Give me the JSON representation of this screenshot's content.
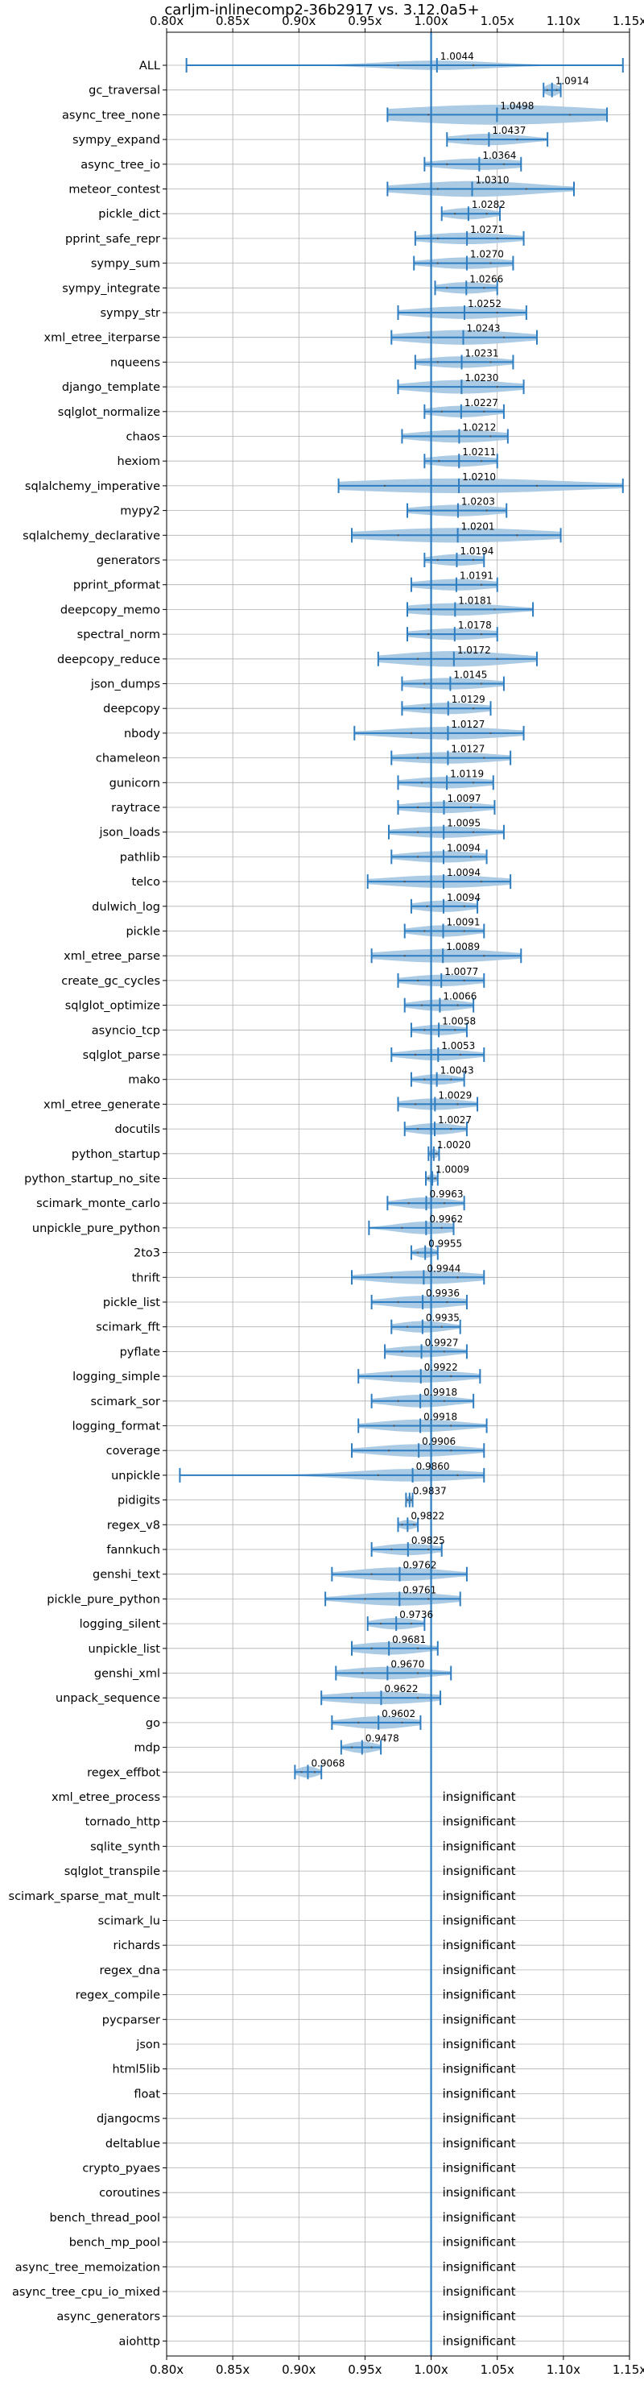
{
  "chart_data": {
    "type": "violin",
    "title": "carljm-inlinecomp2-36b2917 vs. 3.12.0a5+",
    "xlim": [
      0.8,
      1.15
    ],
    "x_ticks": [
      0.8,
      0.85,
      0.9,
      0.95,
      1.0,
      1.05,
      1.1,
      1.15
    ],
    "x_tick_labels": [
      "0.80x",
      "0.85x",
      "0.90x",
      "0.95x",
      "1.00x",
      "1.05x",
      "1.10x",
      "1.15x"
    ],
    "reference_line": 1.0,
    "grid": true,
    "colors": {
      "violin": "#a6c8e4",
      "line": "#2e7dc0"
    },
    "insignificant_label": "insignificant",
    "benchmarks": [
      {
        "name": "ALL",
        "mean": 1.0044,
        "label": "1.0044",
        "min": 0.815,
        "max": 1.145,
        "q1": 0.975,
        "q3": 1.032,
        "width": 0.45
      },
      {
        "name": "gc_traversal",
        "mean": 1.0914,
        "label": "1.0914",
        "min": 1.085,
        "max": 1.098,
        "q1": 1.088,
        "q3": 1.095,
        "width": 0.6
      },
      {
        "name": "async_tree_none",
        "mean": 1.0498,
        "label": "1.0498",
        "min": 0.967,
        "max": 1.133,
        "q1": 0.998,
        "q3": 1.105,
        "width": 0.95
      },
      {
        "name": "sympy_expand",
        "mean": 1.0437,
        "label": "1.0437",
        "min": 1.012,
        "max": 1.088,
        "q1": 1.028,
        "q3": 1.065,
        "width": 0.55
      },
      {
        "name": "async_tree_io",
        "mean": 1.0364,
        "label": "1.0364",
        "min": 0.995,
        "max": 1.068,
        "q1": 1.012,
        "q3": 1.055,
        "width": 0.55
      },
      {
        "name": "meteor_contest",
        "mean": 1.031,
        "label": "1.0310",
        "min": 0.967,
        "max": 1.108,
        "q1": 1.005,
        "q3": 1.072,
        "width": 0.75
      },
      {
        "name": "pickle_dict",
        "mean": 1.0282,
        "label": "1.0282",
        "min": 1.008,
        "max": 1.052,
        "q1": 1.018,
        "q3": 1.042,
        "width": 0.55
      },
      {
        "name": "pprint_safe_repr",
        "mean": 1.0271,
        "label": "1.0271",
        "min": 0.988,
        "max": 1.07,
        "q1": 1.005,
        "q3": 1.05,
        "width": 0.55
      },
      {
        "name": "sympy_sum",
        "mean": 1.027,
        "label": "1.0270",
        "min": 0.987,
        "max": 1.062,
        "q1": 1.005,
        "q3": 1.045,
        "width": 0.55
      },
      {
        "name": "sympy_integrate",
        "mean": 1.0266,
        "label": "1.0266",
        "min": 1.003,
        "max": 1.05,
        "q1": 1.012,
        "q3": 1.04,
        "width": 0.55
      },
      {
        "name": "sympy_str",
        "mean": 1.0252,
        "label": "1.0252",
        "min": 0.975,
        "max": 1.072,
        "q1": 1.0,
        "q3": 1.05,
        "width": 0.6
      },
      {
        "name": "xml_etree_iterparse",
        "mean": 1.0243,
        "label": "1.0243",
        "min": 0.97,
        "max": 1.08,
        "q1": 0.998,
        "q3": 1.055,
        "width": 0.7
      },
      {
        "name": "nqueens",
        "mean": 1.0231,
        "label": "1.0231",
        "min": 0.988,
        "max": 1.062,
        "q1": 1.005,
        "q3": 1.045,
        "width": 0.55
      },
      {
        "name": "django_template",
        "mean": 1.023,
        "label": "1.0230",
        "min": 0.975,
        "max": 1.07,
        "q1": 1.0,
        "q3": 1.05,
        "width": 0.65
      },
      {
        "name": "sqlglot_normalize",
        "mean": 1.0227,
        "label": "1.0227",
        "min": 0.995,
        "max": 1.055,
        "q1": 1.008,
        "q3": 1.04,
        "width": 0.55
      },
      {
        "name": "chaos",
        "mean": 1.0212,
        "label": "1.0212",
        "min": 0.978,
        "max": 1.058,
        "q1": 1.0,
        "q3": 1.045,
        "width": 0.6
      },
      {
        "name": "hexiom",
        "mean": 1.0211,
        "label": "1.0211",
        "min": 0.995,
        "max": 1.05,
        "q1": 1.006,
        "q3": 1.038,
        "width": 0.55
      },
      {
        "name": "sqlalchemy_imperative",
        "mean": 1.021,
        "label": "1.0210",
        "min": 0.93,
        "max": 1.145,
        "q1": 0.965,
        "q3": 1.08,
        "width": 0.7
      },
      {
        "name": "mypy2",
        "mean": 1.0203,
        "label": "1.0203",
        "min": 0.982,
        "max": 1.057,
        "q1": 1.0,
        "q3": 1.042,
        "width": 0.55
      },
      {
        "name": "sqlalchemy_declarative",
        "mean": 1.0201,
        "label": "1.0201",
        "min": 0.94,
        "max": 1.098,
        "q1": 0.975,
        "q3": 1.065,
        "width": 0.7
      },
      {
        "name": "generators",
        "mean": 1.0194,
        "label": "1.0194",
        "min": 0.995,
        "max": 1.04,
        "q1": 1.005,
        "q3": 1.032,
        "width": 0.55
      },
      {
        "name": "pprint_pformat",
        "mean": 1.0191,
        "label": "1.0191",
        "min": 0.985,
        "max": 1.05,
        "q1": 1.0,
        "q3": 1.038,
        "width": 0.55
      },
      {
        "name": "deepcopy_memo",
        "mean": 1.0181,
        "label": "1.0181",
        "min": 0.982,
        "max": 1.077,
        "q1": 0.998,
        "q3": 1.048,
        "width": 0.6
      },
      {
        "name": "spectral_norm",
        "mean": 1.0178,
        "label": "1.0178",
        "min": 0.982,
        "max": 1.05,
        "q1": 0.998,
        "q3": 1.038,
        "width": 0.55
      },
      {
        "name": "deepcopy_reduce",
        "mean": 1.0172,
        "label": "1.0172",
        "min": 0.96,
        "max": 1.08,
        "q1": 0.99,
        "q3": 1.05,
        "width": 0.75
      },
      {
        "name": "json_dumps",
        "mean": 1.0145,
        "label": "1.0145",
        "min": 0.978,
        "max": 1.055,
        "q1": 0.995,
        "q3": 1.038,
        "width": 0.55
      },
      {
        "name": "deepcopy",
        "mean": 1.0129,
        "label": "1.0129",
        "min": 0.978,
        "max": 1.045,
        "q1": 0.995,
        "q3": 1.032,
        "width": 0.55
      },
      {
        "name": "nbody",
        "mean": 1.0127,
        "label": "1.0127",
        "min": 0.942,
        "max": 1.07,
        "q1": 0.985,
        "q3": 1.045,
        "width": 0.6
      },
      {
        "name": "chameleon",
        "mean": 1.0127,
        "label": "1.0127",
        "min": 0.97,
        "max": 1.06,
        "q1": 0.99,
        "q3": 1.04,
        "width": 0.55
      },
      {
        "name": "gunicorn",
        "mean": 1.0119,
        "label": "1.0119",
        "min": 0.975,
        "max": 1.047,
        "q1": 0.993,
        "q3": 1.032,
        "width": 0.55
      },
      {
        "name": "raytrace",
        "mean": 1.0097,
        "label": "1.0097",
        "min": 0.975,
        "max": 1.048,
        "q1": 0.99,
        "q3": 1.03,
        "width": 0.55
      },
      {
        "name": "json_loads",
        "mean": 1.0095,
        "label": "1.0095",
        "min": 0.968,
        "max": 1.055,
        "q1": 0.99,
        "q3": 1.032,
        "width": 0.55
      },
      {
        "name": "pathlib",
        "mean": 1.0094,
        "label": "1.0094",
        "min": 0.97,
        "max": 1.042,
        "q1": 0.99,
        "q3": 1.03,
        "width": 0.55
      },
      {
        "name": "telco",
        "mean": 1.0094,
        "label": "1.0094",
        "min": 0.952,
        "max": 1.06,
        "q1": 0.98,
        "q3": 1.038,
        "width": 0.6
      },
      {
        "name": "dulwich_log",
        "mean": 1.0094,
        "label": "1.0094",
        "min": 0.985,
        "max": 1.035,
        "q1": 0.997,
        "q3": 1.025,
        "width": 0.55
      },
      {
        "name": "pickle",
        "mean": 1.0091,
        "label": "1.0091",
        "min": 0.98,
        "max": 1.04,
        "q1": 0.995,
        "q3": 1.025,
        "width": 0.55
      },
      {
        "name": "xml_etree_parse",
        "mean": 1.0089,
        "label": "1.0089",
        "min": 0.955,
        "max": 1.068,
        "q1": 0.98,
        "q3": 1.04,
        "width": 0.65
      },
      {
        "name": "create_gc_cycles",
        "mean": 1.0077,
        "label": "1.0077",
        "min": 0.975,
        "max": 1.04,
        "q1": 0.99,
        "q3": 1.025,
        "width": 0.55
      },
      {
        "name": "sqlglot_optimize",
        "mean": 1.0066,
        "label": "1.0066",
        "min": 0.98,
        "max": 1.032,
        "q1": 0.993,
        "q3": 1.02,
        "width": 0.55
      },
      {
        "name": "asyncio_tcp",
        "mean": 1.0058,
        "label": "1.0058",
        "min": 0.985,
        "max": 1.027,
        "q1": 0.995,
        "q3": 1.018,
        "width": 0.5
      },
      {
        "name": "sqlglot_parse",
        "mean": 1.0053,
        "label": "1.0053",
        "min": 0.97,
        "max": 1.04,
        "q1": 0.988,
        "q3": 1.022,
        "width": 0.55
      },
      {
        "name": "mako",
        "mean": 1.0043,
        "label": "1.0043",
        "min": 0.985,
        "max": 1.025,
        "q1": 0.995,
        "q3": 1.015,
        "width": 0.5
      },
      {
        "name": "xml_etree_generate",
        "mean": 1.0029,
        "label": "1.0029",
        "min": 0.975,
        "max": 1.035,
        "q1": 0.988,
        "q3": 1.02,
        "width": 0.55
      },
      {
        "name": "docutils",
        "mean": 1.0027,
        "label": "1.0027",
        "min": 0.98,
        "max": 1.027,
        "q1": 0.99,
        "q3": 1.015,
        "width": 0.55
      },
      {
        "name": "python_startup",
        "mean": 1.002,
        "label": "1.0020",
        "min": 0.998,
        "max": 1.006,
        "q1": 1.0,
        "q3": 1.004,
        "width": 0.45
      },
      {
        "name": "python_startup_no_site",
        "mean": 1.0009,
        "label": "1.0009",
        "min": 0.996,
        "max": 1.005,
        "q1": 0.998,
        "q3": 1.003,
        "width": 0.4
      },
      {
        "name": "scimark_monte_carlo",
        "mean": 0.9963,
        "label": "0.9963",
        "min": 0.967,
        "max": 1.025,
        "q1": 0.983,
        "q3": 1.01,
        "width": 0.55
      },
      {
        "name": "unpickle_pure_python",
        "mean": 0.9962,
        "label": "0.9962",
        "min": 0.953,
        "max": 1.017,
        "q1": 0.978,
        "q3": 1.008,
        "width": 0.6
      },
      {
        "name": "2to3",
        "mean": 0.9955,
        "label": "0.9955",
        "min": 0.985,
        "max": 1.005,
        "q1": 0.99,
        "q3": 1.0,
        "width": 0.5
      },
      {
        "name": "thrift",
        "mean": 0.9944,
        "label": "0.9944",
        "min": 0.94,
        "max": 1.04,
        "q1": 0.97,
        "q3": 1.02,
        "width": 0.65
      },
      {
        "name": "pickle_list",
        "mean": 0.9936,
        "label": "0.9936",
        "min": 0.955,
        "max": 1.027,
        "q1": 0.975,
        "q3": 1.012,
        "width": 0.6
      },
      {
        "name": "scimark_fft",
        "mean": 0.9935,
        "label": "0.9935",
        "min": 0.97,
        "max": 1.022,
        "q1": 0.982,
        "q3": 1.008,
        "width": 0.55
      },
      {
        "name": "pyflate",
        "mean": 0.9927,
        "label": "0.9927",
        "min": 0.965,
        "max": 1.027,
        "q1": 0.978,
        "q3": 1.01,
        "width": 0.55
      },
      {
        "name": "logging_simple",
        "mean": 0.9922,
        "label": "0.9922",
        "min": 0.945,
        "max": 1.037,
        "q1": 0.97,
        "q3": 1.015,
        "width": 0.6
      },
      {
        "name": "scimark_sor",
        "mean": 0.9918,
        "label": "0.9918",
        "min": 0.955,
        "max": 1.032,
        "q1": 0.975,
        "q3": 1.01,
        "width": 0.6
      },
      {
        "name": "logging_format",
        "mean": 0.9918,
        "label": "0.9918",
        "min": 0.945,
        "max": 1.042,
        "q1": 0.972,
        "q3": 1.015,
        "width": 0.6
      },
      {
        "name": "coverage",
        "mean": 0.9906,
        "label": "0.9906",
        "min": 0.94,
        "max": 1.04,
        "q1": 0.968,
        "q3": 1.015,
        "width": 0.6
      },
      {
        "name": "unpickle",
        "mean": 0.986,
        "label": "0.9860",
        "min": 0.81,
        "max": 1.04,
        "q1": 0.96,
        "q3": 1.02,
        "width": 0.6
      },
      {
        "name": "pidigits",
        "mean": 0.9837,
        "label": "0.9837",
        "min": 0.981,
        "max": 0.986,
        "q1": 0.982,
        "q3": 0.985,
        "width": 0.4
      },
      {
        "name": "regex_v8",
        "mean": 0.9822,
        "label": "0.9822",
        "min": 0.975,
        "max": 0.99,
        "q1": 0.978,
        "q3": 0.987,
        "width": 0.45
      },
      {
        "name": "fannkuch",
        "mean": 0.9825,
        "label": "0.9825",
        "min": 0.955,
        "max": 1.008,
        "q1": 0.97,
        "q3": 0.998,
        "width": 0.55
      },
      {
        "name": "genshi_text",
        "mean": 0.9762,
        "label": "0.9762",
        "min": 0.925,
        "max": 1.027,
        "q1": 0.955,
        "q3": 1.0,
        "width": 0.65
      },
      {
        "name": "pickle_pure_python",
        "mean": 0.9761,
        "label": "0.9761",
        "min": 0.92,
        "max": 1.022,
        "q1": 0.95,
        "q3": 0.998,
        "width": 0.65
      },
      {
        "name": "logging_silent",
        "mean": 0.9736,
        "label": "0.9736",
        "min": 0.952,
        "max": 0.995,
        "q1": 0.962,
        "q3": 0.985,
        "width": 0.55
      },
      {
        "name": "unpickle_list",
        "mean": 0.9681,
        "label": "0.9681",
        "min": 0.94,
        "max": 1.005,
        "q1": 0.955,
        "q3": 0.99,
        "width": 0.6
      },
      {
        "name": "genshi_xml",
        "mean": 0.967,
        "label": "0.9670",
        "min": 0.928,
        "max": 1.015,
        "q1": 0.948,
        "q3": 0.99,
        "width": 0.6
      },
      {
        "name": "unpack_sequence",
        "mean": 0.9622,
        "label": "0.9622",
        "min": 0.917,
        "max": 1.007,
        "q1": 0.94,
        "q3": 0.99,
        "width": 0.6
      },
      {
        "name": "go",
        "mean": 0.9602,
        "label": "0.9602",
        "min": 0.925,
        "max": 0.992,
        "q1": 0.945,
        "q3": 0.978,
        "width": 0.6
      },
      {
        "name": "mdp",
        "mean": 0.9478,
        "label": "0.9478",
        "min": 0.932,
        "max": 0.962,
        "q1": 0.94,
        "q3": 0.955,
        "width": 0.55
      },
      {
        "name": "regex_effbot",
        "mean": 0.9068,
        "label": "0.9068",
        "min": 0.897,
        "max": 0.917,
        "q1": 0.902,
        "q3": 0.912,
        "width": 0.55
      },
      {
        "name": "xml_etree_process",
        "insignificant": true
      },
      {
        "name": "tornado_http",
        "insignificant": true
      },
      {
        "name": "sqlite_synth",
        "insignificant": true
      },
      {
        "name": "sqlglot_transpile",
        "insignificant": true
      },
      {
        "name": "scimark_sparse_mat_mult",
        "insignificant": true
      },
      {
        "name": "scimark_lu",
        "insignificant": true
      },
      {
        "name": "richards",
        "insignificant": true
      },
      {
        "name": "regex_dna",
        "insignificant": true
      },
      {
        "name": "regex_compile",
        "insignificant": true
      },
      {
        "name": "pycparser",
        "insignificant": true
      },
      {
        "name": "json",
        "insignificant": true
      },
      {
        "name": "html5lib",
        "insignificant": true
      },
      {
        "name": "float",
        "insignificant": true
      },
      {
        "name": "djangocms",
        "insignificant": true
      },
      {
        "name": "deltablue",
        "insignificant": true
      },
      {
        "name": "crypto_pyaes",
        "insignificant": true
      },
      {
        "name": "coroutines",
        "insignificant": true
      },
      {
        "name": "bench_thread_pool",
        "insignificant": true
      },
      {
        "name": "bench_mp_pool",
        "insignificant": true
      },
      {
        "name": "async_tree_memoization",
        "insignificant": true
      },
      {
        "name": "async_tree_cpu_io_mixed",
        "insignificant": true
      },
      {
        "name": "async_generators",
        "insignificant": true
      },
      {
        "name": "aiohttp",
        "insignificant": true
      }
    ]
  }
}
